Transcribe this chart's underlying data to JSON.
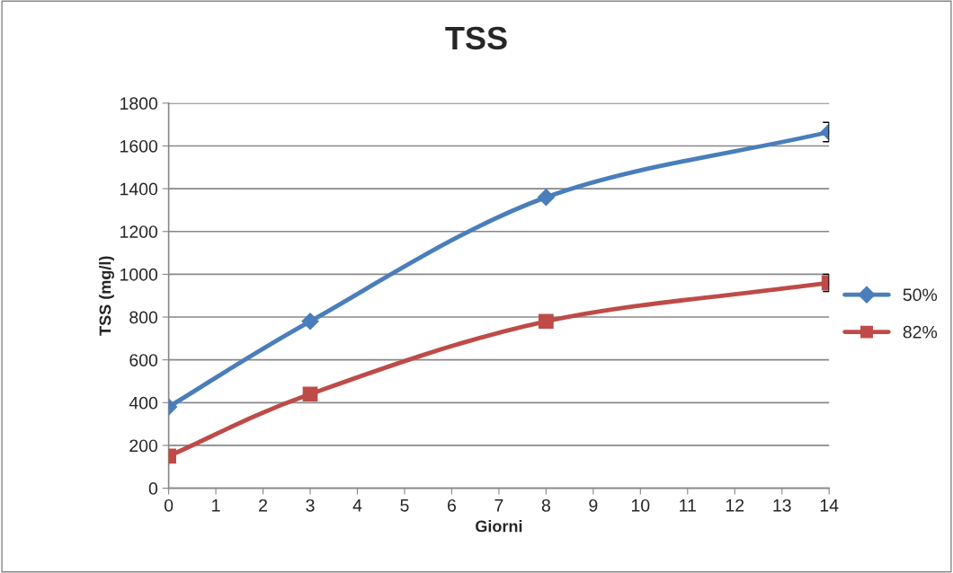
{
  "chart_data": {
    "type": "line",
    "title": "TSS",
    "xlabel": "Giorni",
    "ylabel": "TSS (mg/l)",
    "x": [
      0,
      3,
      8,
      14
    ],
    "series": [
      {
        "name": "50%",
        "color": "#4a7ebb",
        "marker": "diamond",
        "values": [
          380,
          780,
          1360,
          1665
        ],
        "errors": [
          null,
          null,
          null,
          45
        ]
      },
      {
        "name": "82%",
        "color": "#be4b48",
        "marker": "square",
        "values": [
          150,
          440,
          780,
          960
        ],
        "errors": [
          null,
          null,
          null,
          40
        ]
      }
    ],
    "xlim": [
      0,
      14
    ],
    "xticks": [
      0,
      1,
      2,
      3,
      4,
      5,
      6,
      7,
      8,
      9,
      10,
      11,
      12,
      13,
      14
    ],
    "ylim": [
      0,
      1800
    ],
    "yticks": [
      0,
      200,
      400,
      600,
      800,
      1000,
      1200,
      1400,
      1600,
      1800
    ],
    "grid": "y",
    "legend": "right",
    "line_style": "solid"
  }
}
